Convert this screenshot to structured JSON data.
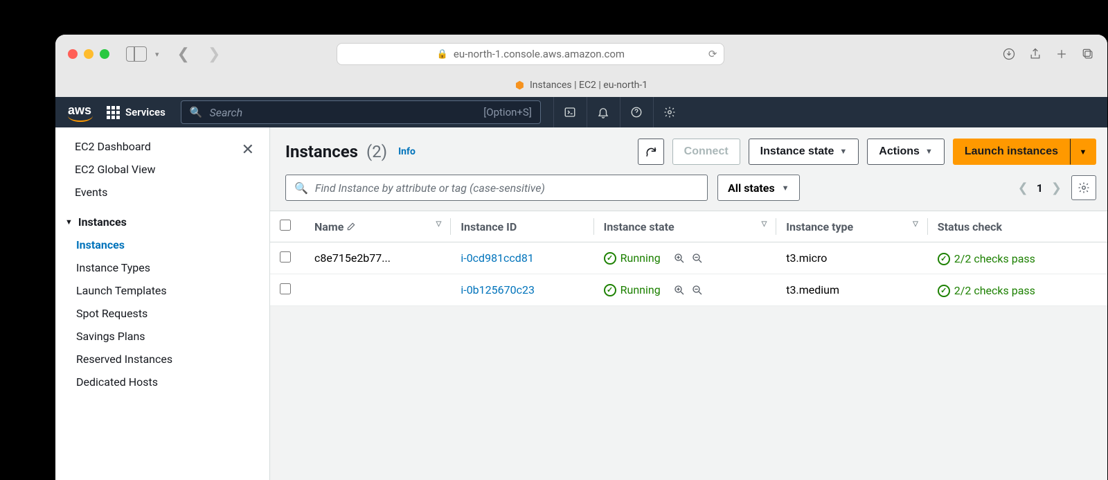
{
  "browser": {
    "url": "eu-north-1.console.aws.amazon.com",
    "tab_title": "Instances | EC2 | eu-north-1"
  },
  "aws_nav": {
    "logo_text": "aws",
    "services_label": "Services",
    "search_placeholder": "Search",
    "search_hint": "[Option+S]"
  },
  "sidebar": {
    "top_links": [
      "EC2 Dashboard",
      "EC2 Global View",
      "Events"
    ],
    "section": {
      "title": "Instances",
      "items": [
        {
          "label": "Instances",
          "active": true
        },
        {
          "label": "Instance Types",
          "active": false
        },
        {
          "label": "Launch Templates",
          "active": false
        },
        {
          "label": "Spot Requests",
          "active": false
        },
        {
          "label": "Savings Plans",
          "active": false
        },
        {
          "label": "Reserved Instances",
          "active": false
        },
        {
          "label": "Dedicated Hosts",
          "active": false
        }
      ]
    }
  },
  "header": {
    "title": "Instances",
    "count": "(2)",
    "info_label": "Info",
    "connect_label": "Connect",
    "instance_state_label": "Instance state",
    "actions_label": "Actions",
    "launch_label": "Launch instances"
  },
  "toolbar": {
    "filter_placeholder": "Find Instance by attribute or tag (case-sensitive)",
    "states_label": "All states",
    "page": "1"
  },
  "table": {
    "columns": [
      "Name",
      "Instance ID",
      "Instance state",
      "Instance type",
      "Status check"
    ],
    "rows": [
      {
        "name": "c8e715e2b77...",
        "id": "i-0cd981ccd81",
        "state": "Running",
        "type": "t3.micro",
        "status": "2/2 checks pass"
      },
      {
        "name": "",
        "id": "i-0b125670c23",
        "state": "Running",
        "type": "t3.medium",
        "status": "2/2 checks pass"
      }
    ]
  },
  "colors": {
    "aws_orange": "#ff9900",
    "aws_navy": "#232f3e",
    "link_blue": "#0073bb",
    "ok_green": "#1d8102",
    "bg_gray": "#f2f3f3",
    "border_gray": "#d5dbdb"
  }
}
